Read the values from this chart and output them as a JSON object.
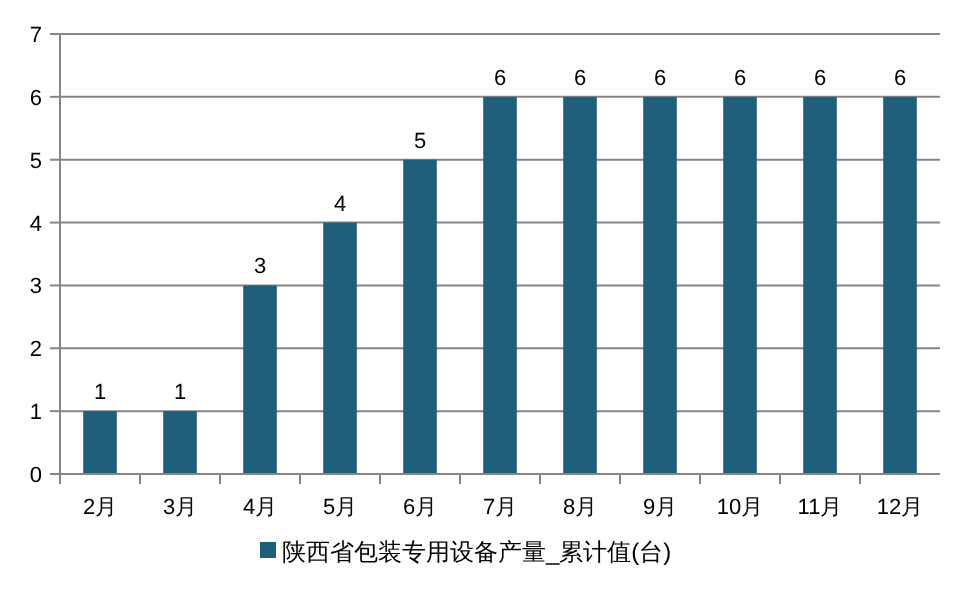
{
  "chart_data": {
    "type": "bar",
    "categories": [
      "2月",
      "3月",
      "4月",
      "5月",
      "6月",
      "7月",
      "8月",
      "9月",
      "10月",
      "11月",
      "12月"
    ],
    "series": [
      {
        "name": "陕西省包装专用设备产量_累计值(台)",
        "color": "#1f5f7c",
        "values": [
          1,
          1,
          3,
          4,
          5,
          6,
          6,
          6,
          6,
          6,
          6
        ]
      }
    ],
    "ylim": [
      0,
      7
    ],
    "yticks": [
      0,
      1,
      2,
      3,
      4,
      5,
      6,
      7
    ],
    "grid": "y",
    "legend": "bottom",
    "data_labels": true
  }
}
